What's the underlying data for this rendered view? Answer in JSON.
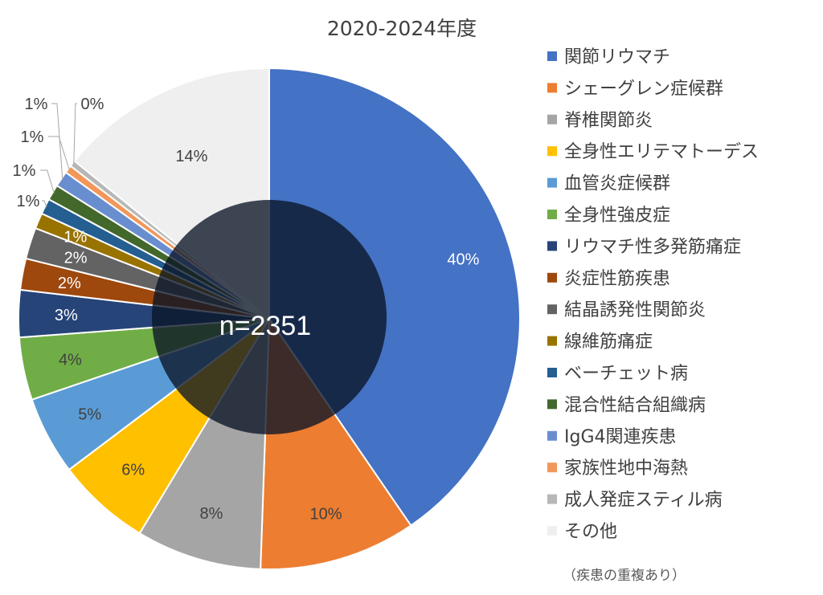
{
  "chart_data": {
    "type": "pie",
    "title": "2020-2024年度",
    "center_label": "n=2351",
    "footnote": "（疾患の重複あり）",
    "categories": [
      "関節リウマチ",
      "シェーグレン症候群",
      "脊椎関節炎",
      "全身性エリテマトーデス",
      "血管炎症候群",
      "全身性強皮症",
      "リウマチ性多発筋痛症",
      "炎症性筋疾患",
      "結晶誘発性関節炎",
      "線維筋痛症",
      "ベーチェット病",
      "混合性結合組織病",
      "IgG4関連疾患",
      "家族性地中海熱",
      "成人発症スティル病",
      "その他"
    ],
    "values": [
      40,
      10,
      8,
      6,
      5,
      4,
      3,
      2,
      2,
      1,
      1,
      1,
      1,
      0.5,
      0.4,
      14
    ],
    "data_labels": [
      "40%",
      "10%",
      "8%",
      "6%",
      "5%",
      "4%",
      "3%",
      "2%",
      "2%",
      "1%",
      "1%",
      "1%",
      "1%",
      "1%",
      "0%",
      "14%"
    ],
    "colors": [
      "#4472C4",
      "#ED7D31",
      "#A5A5A5",
      "#FFC000",
      "#5B9BD5",
      "#70AD47",
      "#264478",
      "#9E480E",
      "#636363",
      "#997300",
      "#255E91",
      "#43682B",
      "#698ED0",
      "#F1975A",
      "#B7B7B7",
      "#EFEFEF"
    ],
    "label_colors": [
      "#ffffff",
      "#404040",
      "#404040",
      "#404040",
      "#404040",
      "#404040",
      "#ffffff",
      "#ffffff",
      "#ffffff",
      "#ffffff",
      "#404040",
      "#404040",
      "#404040",
      "#404040",
      "#404040",
      "#404040"
    ],
    "legend_position": "right",
    "inner_circle_color": "#0A1426"
  }
}
